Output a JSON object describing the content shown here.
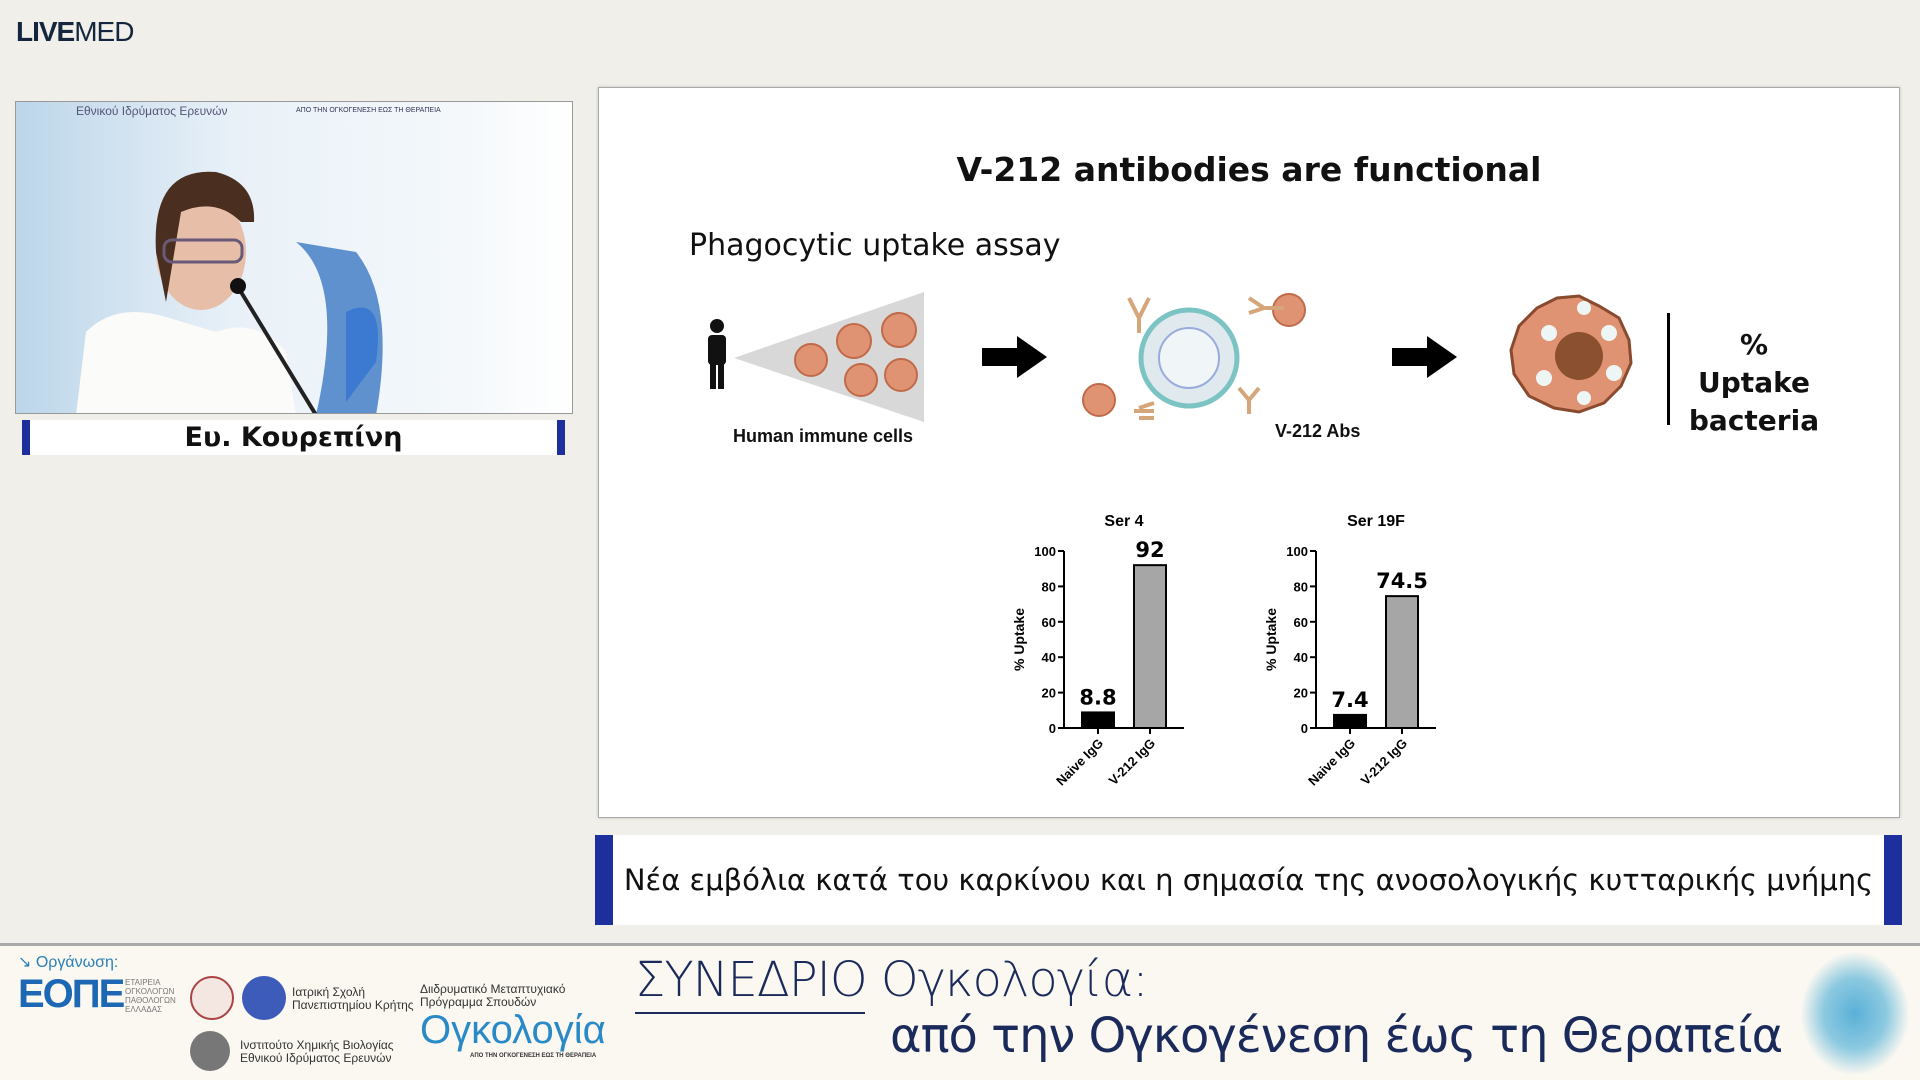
{
  "header": {
    "logo_bold": "LIVE",
    "logo_light": "MED"
  },
  "video": {
    "speaker_name": "Ευ. Κουρεπίνη",
    "backdrop_text_1": "Εθνικού Ιδρύματος Ερευνών",
    "backdrop_text_2": "ΑΠΟ ΤΗΝ ΟΓΚΟΓΕΝΕΣΗ ΕΩΣ ΤΗ ΘΕΡΑΠΕΙΑ"
  },
  "slide": {
    "title": "V-212 antibodies are functional",
    "subtitle": "Phagocytic uptake assay",
    "label_cells": "Human immune cells",
    "label_abs": "V-212 Abs",
    "label_uptake": [
      "%",
      "Uptake",
      "bacteria"
    ]
  },
  "chart_data": [
    {
      "type": "bar",
      "title": "Ser 4",
      "ylabel": "% Uptake",
      "ylim": [
        0,
        100
      ],
      "yticks": [
        0,
        20,
        40,
        60,
        80,
        100
      ],
      "categories": [
        "Naive IgG",
        "V-212 IgG"
      ],
      "values": [
        8.8,
        92
      ],
      "data_labels": [
        "8.8",
        "92"
      ],
      "colors": [
        "#000000",
        "#a6a6a6"
      ]
    },
    {
      "type": "bar",
      "title": "Ser 19F",
      "ylabel": "% Uptake",
      "ylim": [
        0,
        100
      ],
      "yticks": [
        0,
        20,
        40,
        60,
        80,
        100
      ],
      "categories": [
        "Naive IgG",
        "V-212 IgG"
      ],
      "values": [
        7.4,
        74.5
      ],
      "data_labels": [
        "7.4",
        "74.5"
      ],
      "colors": [
        "#000000",
        "#a6a6a6"
      ]
    }
  ],
  "banner": {
    "text": "Νέα εμβόλια κατά του καρκίνου και η σημασία της ανοσολογικής κυτταρικής μνήμης"
  },
  "footer": {
    "org_label": "Οργάνωση:",
    "eope": "ΕΟΠΕ",
    "eope_sub": [
      "ΕΤΑΙΡΕΙΑ",
      "ΟΓΚΟΛΟΓΩΝ",
      "ΠΑΘΟΛΟΓΩΝ",
      "ΕΛΛΑΔΑΣ"
    ],
    "med_school": [
      "Ιατρική Σχολή",
      "Πανεπιστημίου Κρήτης"
    ],
    "institute": [
      "Ινστιτούτο Χημικής Βιολογίας",
      "Εθνικού Ιδρύματος Ερευνών"
    ],
    "program": [
      "Διιδρυματικό Μεταπτυχιακό",
      "Πρόγραμμα Σπουδών"
    ],
    "oncology_logo": "Ογκολογία",
    "oncology_tag": "ΑΠΟ ΤΗΝ ΟΓΚΟΓΕΝΕΣΗ ΕΩΣ ΤΗ ΘΕΡΑΠΕΙΑ",
    "conference_line1": "ΣΥΝΕΔΡΙΟ Ογκολογία:",
    "conference_line2": "από την Ογκογένεση έως τη Θεραπεία"
  }
}
